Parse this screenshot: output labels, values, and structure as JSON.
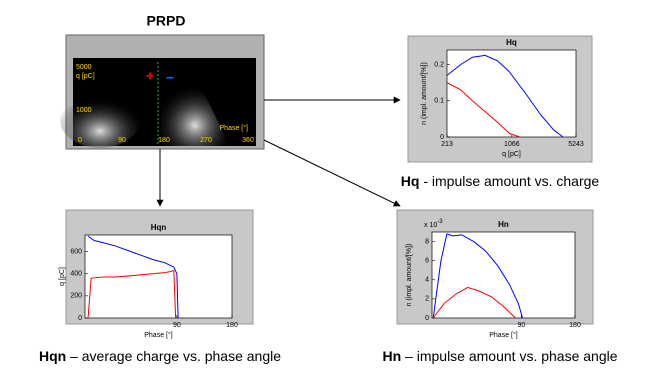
{
  "prpd": {
    "title": "PRPD",
    "ytick_top": "5000",
    "ylabel": "q [pC]",
    "ytick_mid": "1000",
    "xlabel": "Phase [°]",
    "xticks": [
      "0",
      "90",
      "180",
      "270",
      "360"
    ]
  },
  "hq": {
    "title": "Hq",
    "xlabel": "q [pC]",
    "ylabel": "n (impl. amount/[%])",
    "xscale": "log",
    "xlim": [
      213,
      5243
    ],
    "xticks": [
      213,
      1066,
      5243
    ],
    "ylim": [
      0,
      0.24
    ],
    "yticks": [
      0,
      0.1,
      0.2
    ],
    "series": [
      {
        "color": "#0000ff",
        "x": [
          213,
          300,
          400,
          550,
          750,
          1000,
          1500,
          2200,
          3000,
          3800
        ],
        "values": [
          0.17,
          0.2,
          0.22,
          0.225,
          0.21,
          0.18,
          0.12,
          0.06,
          0.02,
          0
        ]
      },
      {
        "color": "#ff0000",
        "x": [
          213,
          300,
          400,
          550,
          750,
          1000,
          1300
        ],
        "values": [
          0.15,
          0.13,
          0.1,
          0.07,
          0.04,
          0.01,
          0
        ]
      }
    ],
    "caption_bold": "Hq",
    "caption": " - impulse amount vs. charge"
  },
  "hqn": {
    "title": "Hqn",
    "xlabel": "Phase [°]",
    "ylabel": "q [pC]",
    "xscale": "linear",
    "xlim": [
      -60,
      180
    ],
    "xticks": [
      90,
      180
    ],
    "ylim": [
      0,
      750
    ],
    "yticks": [
      0,
      200,
      400,
      600
    ],
    "series": [
      {
        "color": "#0000ff",
        "x": [
          -55,
          -45,
          -30,
          -10,
          10,
          30,
          50,
          70,
          85,
          90,
          92
        ],
        "values": [
          740,
          700,
          680,
          650,
          610,
          570,
          530,
          500,
          460,
          400,
          0
        ]
      },
      {
        "color": "#ff0000",
        "x": [
          -55,
          -50,
          -30,
          -10,
          10,
          30,
          50,
          70,
          80,
          85,
          88
        ],
        "values": [
          0,
          360,
          370,
          370,
          380,
          390,
          400,
          410,
          420,
          430,
          0
        ]
      }
    ],
    "caption_bold": "Hqn",
    "caption": " – average charge vs. phase angle"
  },
  "hn": {
    "title": "Hn",
    "xlabel": "Phase [°]",
    "ylabel": "n (impl. amount/[%])",
    "xscale": "linear",
    "exponent_base": "x 10",
    "exponent": "-3",
    "xlim": [
      -60,
      180
    ],
    "xticks": [
      90,
      180
    ],
    "ylim": [
      0,
      9
    ],
    "yticks": [
      0,
      2,
      4,
      6,
      8
    ],
    "series": [
      {
        "color": "#0000ff",
        "x": [
          -58,
          -45,
          -35,
          -25,
          -10,
          10,
          30,
          50,
          70,
          85,
          92
        ],
        "values": [
          0,
          6,
          8.8,
          8.6,
          8.7,
          8,
          7,
          5.5,
          3.5,
          1.5,
          0
        ]
      },
      {
        "color": "#ff0000",
        "x": [
          -58,
          -40,
          -20,
          0,
          20,
          40,
          60,
          75,
          80
        ],
        "values": [
          0,
          1.5,
          2.5,
          3.2,
          2.8,
          2.2,
          1.2,
          0.3,
          0
        ]
      }
    ],
    "caption_bold": "Hn",
    "caption": " – impulse amount vs. phase angle"
  }
}
